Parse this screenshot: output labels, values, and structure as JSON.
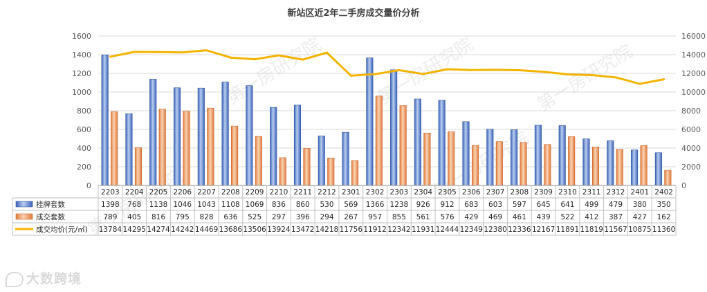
{
  "chart_data": {
    "type": "bar",
    "title": "新站区近2年二手房成交量价分析",
    "categories": [
      "2203",
      "2204",
      "2205",
      "2206",
      "2207",
      "2208",
      "2209",
      "2210",
      "2211",
      "2212",
      "2301",
      "2302",
      "2303",
      "2304",
      "2305",
      "2306",
      "2307",
      "2308",
      "2309",
      "2310",
      "2311",
      "2312",
      "2401",
      "2402"
    ],
    "series": [
      {
        "name": "挂牌套数",
        "type": "bar",
        "axis": "left",
        "color": "#4472c4",
        "values": [
          1398,
          768,
          1138,
          1046,
          1043,
          1108,
          1069,
          836,
          860,
          530,
          569,
          1366,
          1238,
          926,
          912,
          683,
          603,
          597,
          645,
          641,
          499,
          479,
          380,
          350
        ]
      },
      {
        "name": "成交套数",
        "type": "bar",
        "axis": "left",
        "color": "#ed7d31",
        "values": [
          789,
          405,
          816,
          795,
          828,
          636,
          525,
          297,
          396,
          294,
          267,
          957,
          855,
          561,
          576,
          429,
          469,
          461,
          439,
          522,
          412,
          387,
          427,
          162
        ]
      },
      {
        "name": "成交均价(元/㎡)",
        "type": "line",
        "axis": "right",
        "color": "#f2b400",
        "values": [
          13784,
          14295,
          14274,
          14242,
          14469,
          13686,
          13506,
          13924,
          13472,
          14218,
          11756,
          11912,
          12342,
          11931,
          12444,
          12349,
          12380,
          12336,
          12167,
          11891,
          11819,
          11567,
          10875,
          11360
        ]
      }
    ],
    "y_left": {
      "min": 0,
      "max": 1600,
      "ticks": [
        "0",
        "200",
        "400",
        "600",
        "800",
        "1000",
        "1200",
        "1400",
        "1600"
      ]
    },
    "y_right": {
      "min": 0,
      "max": 16000,
      "ticks": [
        "0",
        "2000",
        "4000",
        "6000",
        "8000",
        "10000",
        "12000",
        "14000",
        "16000"
      ]
    },
    "grid": true,
    "legend": "table-below"
  },
  "watermark": {
    "text": "第一房研究院"
  },
  "logo": {
    "text": "大数跨境"
  }
}
